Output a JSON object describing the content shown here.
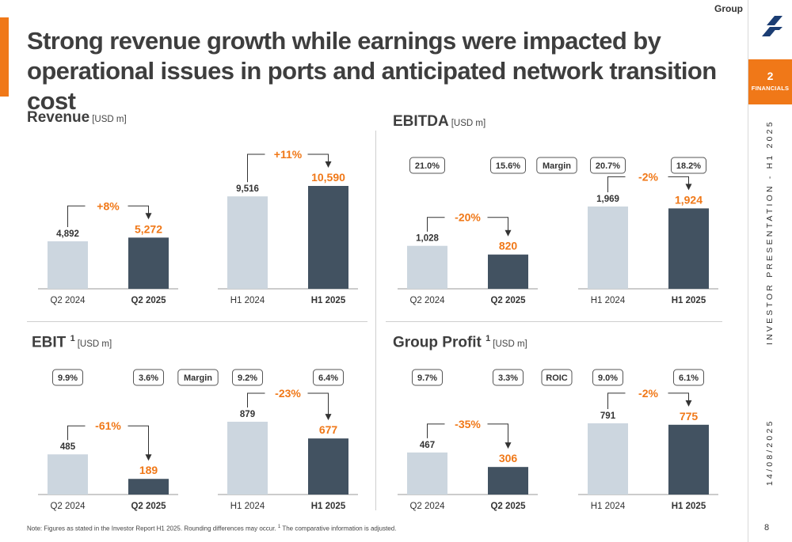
{
  "header": {
    "group_label": "Group",
    "title": "Strong revenue growth while earnings were impacted by operational issues in ports and anticipated network transition cost"
  },
  "sidebar": {
    "chapter_number": "2",
    "chapter_label": "FINANCIALS",
    "presentation_label": "INVESTOR PRESENTATION - H1 2025",
    "date": "14/08/2025",
    "page_number": "8"
  },
  "footnote": {
    "text": "Note: Figures as stated in the Investor Report H1 2025. Rounding differences may occur. ",
    "sup": "1",
    "tail": " The comparative information is adjusted."
  },
  "colors": {
    "accent": "#f07818",
    "bar_prior": "#ccd6df",
    "bar_current": "#425261",
    "text_dark": "#333333"
  },
  "chart_data": [
    {
      "type": "bar",
      "title": "Revenue",
      "title_sup": "",
      "unit": "[USD m]",
      "metric_label": "",
      "groups": [
        {
          "categories": [
            "Q2 2024",
            "Q2 2025"
          ],
          "values": [
            4892,
            5272
          ],
          "value_labels": [
            "4,892",
            "5,272"
          ],
          "change": "+8%",
          "metrics": []
        },
        {
          "categories": [
            "H1 2024",
            "H1 2025"
          ],
          "values": [
            9516,
            10590
          ],
          "value_labels": [
            "9,516",
            "10,590"
          ],
          "change": "+11%",
          "metrics": []
        }
      ]
    },
    {
      "type": "bar",
      "title": "EBITDA",
      "title_sup": "",
      "unit": "[USD m]",
      "metric_label": "Margin",
      "groups": [
        {
          "categories": [
            "Q2 2024",
            "Q2 2025"
          ],
          "values": [
            1028,
            820
          ],
          "value_labels": [
            "1,028",
            "820"
          ],
          "change": "-20%",
          "metrics": [
            "21.0%",
            "15.6%"
          ]
        },
        {
          "categories": [
            "H1 2024",
            "H1 2025"
          ],
          "values": [
            1969,
            1924
          ],
          "value_labels": [
            "1,969",
            "1,924"
          ],
          "change": "-2%",
          "metrics": [
            "20.7%",
            "18.2%"
          ]
        }
      ]
    },
    {
      "type": "bar",
      "title": "EBIT",
      "title_sup": "1",
      "unit": "[USD m]",
      "metric_label": "Margin",
      "groups": [
        {
          "categories": [
            "Q2 2024",
            "Q2 2025"
          ],
          "values": [
            485,
            189
          ],
          "value_labels": [
            "485",
            "189"
          ],
          "change": "-61%",
          "metrics": [
            "9.9%",
            "3.6%"
          ]
        },
        {
          "categories": [
            "H1 2024",
            "H1 2025"
          ],
          "values": [
            879,
            677
          ],
          "value_labels": [
            "879",
            "677"
          ],
          "change": "-23%",
          "metrics": [
            "9.2%",
            "6.4%"
          ]
        }
      ]
    },
    {
      "type": "bar",
      "title": "Group Profit",
      "title_sup": "1",
      "unit": "[USD m]",
      "metric_label": "ROIC",
      "groups": [
        {
          "categories": [
            "Q2 2024",
            "Q2 2025"
          ],
          "values": [
            467,
            306
          ],
          "value_labels": [
            "467",
            "306"
          ],
          "change": "-35%",
          "metrics": [
            "9.7%",
            "3.3%"
          ]
        },
        {
          "categories": [
            "H1 2024",
            "H1 2025"
          ],
          "values": [
            791,
            775
          ],
          "value_labels": [
            "791",
            "775"
          ],
          "change": "-2%",
          "metrics": [
            "9.0%",
            "6.1%"
          ]
        }
      ]
    }
  ]
}
